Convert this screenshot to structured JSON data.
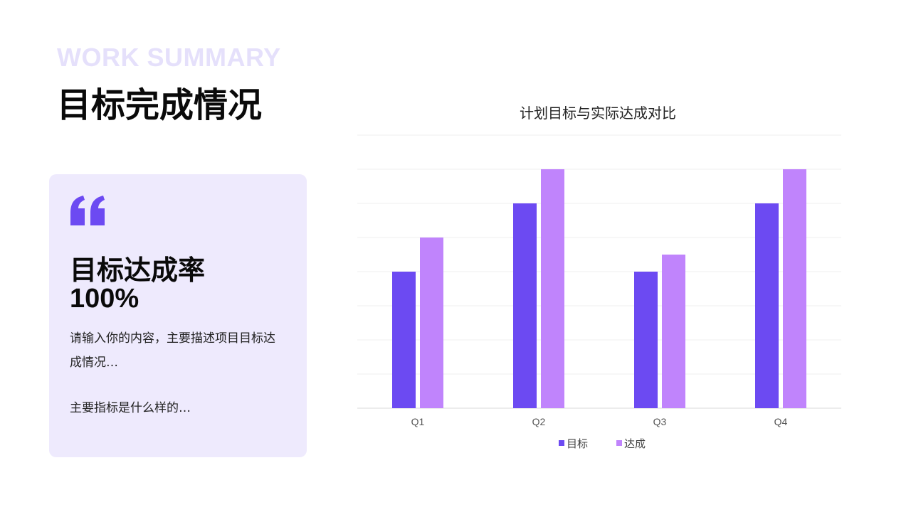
{
  "header": {
    "eyebrow": "WORK SUMMARY",
    "title": "目标完成情况"
  },
  "card": {
    "icon": "quote-icon",
    "metric_label": "目标达成率",
    "metric_value": "100%",
    "description": "请输入你的内容，主要描述项目目标达成情况…",
    "description_2": "主要指标是什么样的…"
  },
  "colors": {
    "accent": "#6c4af2",
    "accent_light": "#c084fc",
    "card_bg": "#eeeafd",
    "eyebrow": "#e5e0fb"
  },
  "chart_data": {
    "type": "bar",
    "title": "计划目标与实际达成对比",
    "categories": [
      "Q1",
      "Q2",
      "Q3",
      "Q4"
    ],
    "series": [
      {
        "name": "目标",
        "values": [
          4,
          6,
          4,
          6
        ],
        "color": "#6c4af2"
      },
      {
        "name": "达成",
        "values": [
          5,
          7,
          4.5,
          7
        ],
        "color": "#c084fc"
      }
    ],
    "ylim": [
      0,
      8
    ],
    "grid": true,
    "legend": "bottom-center",
    "xlabel": "",
    "ylabel": ""
  }
}
